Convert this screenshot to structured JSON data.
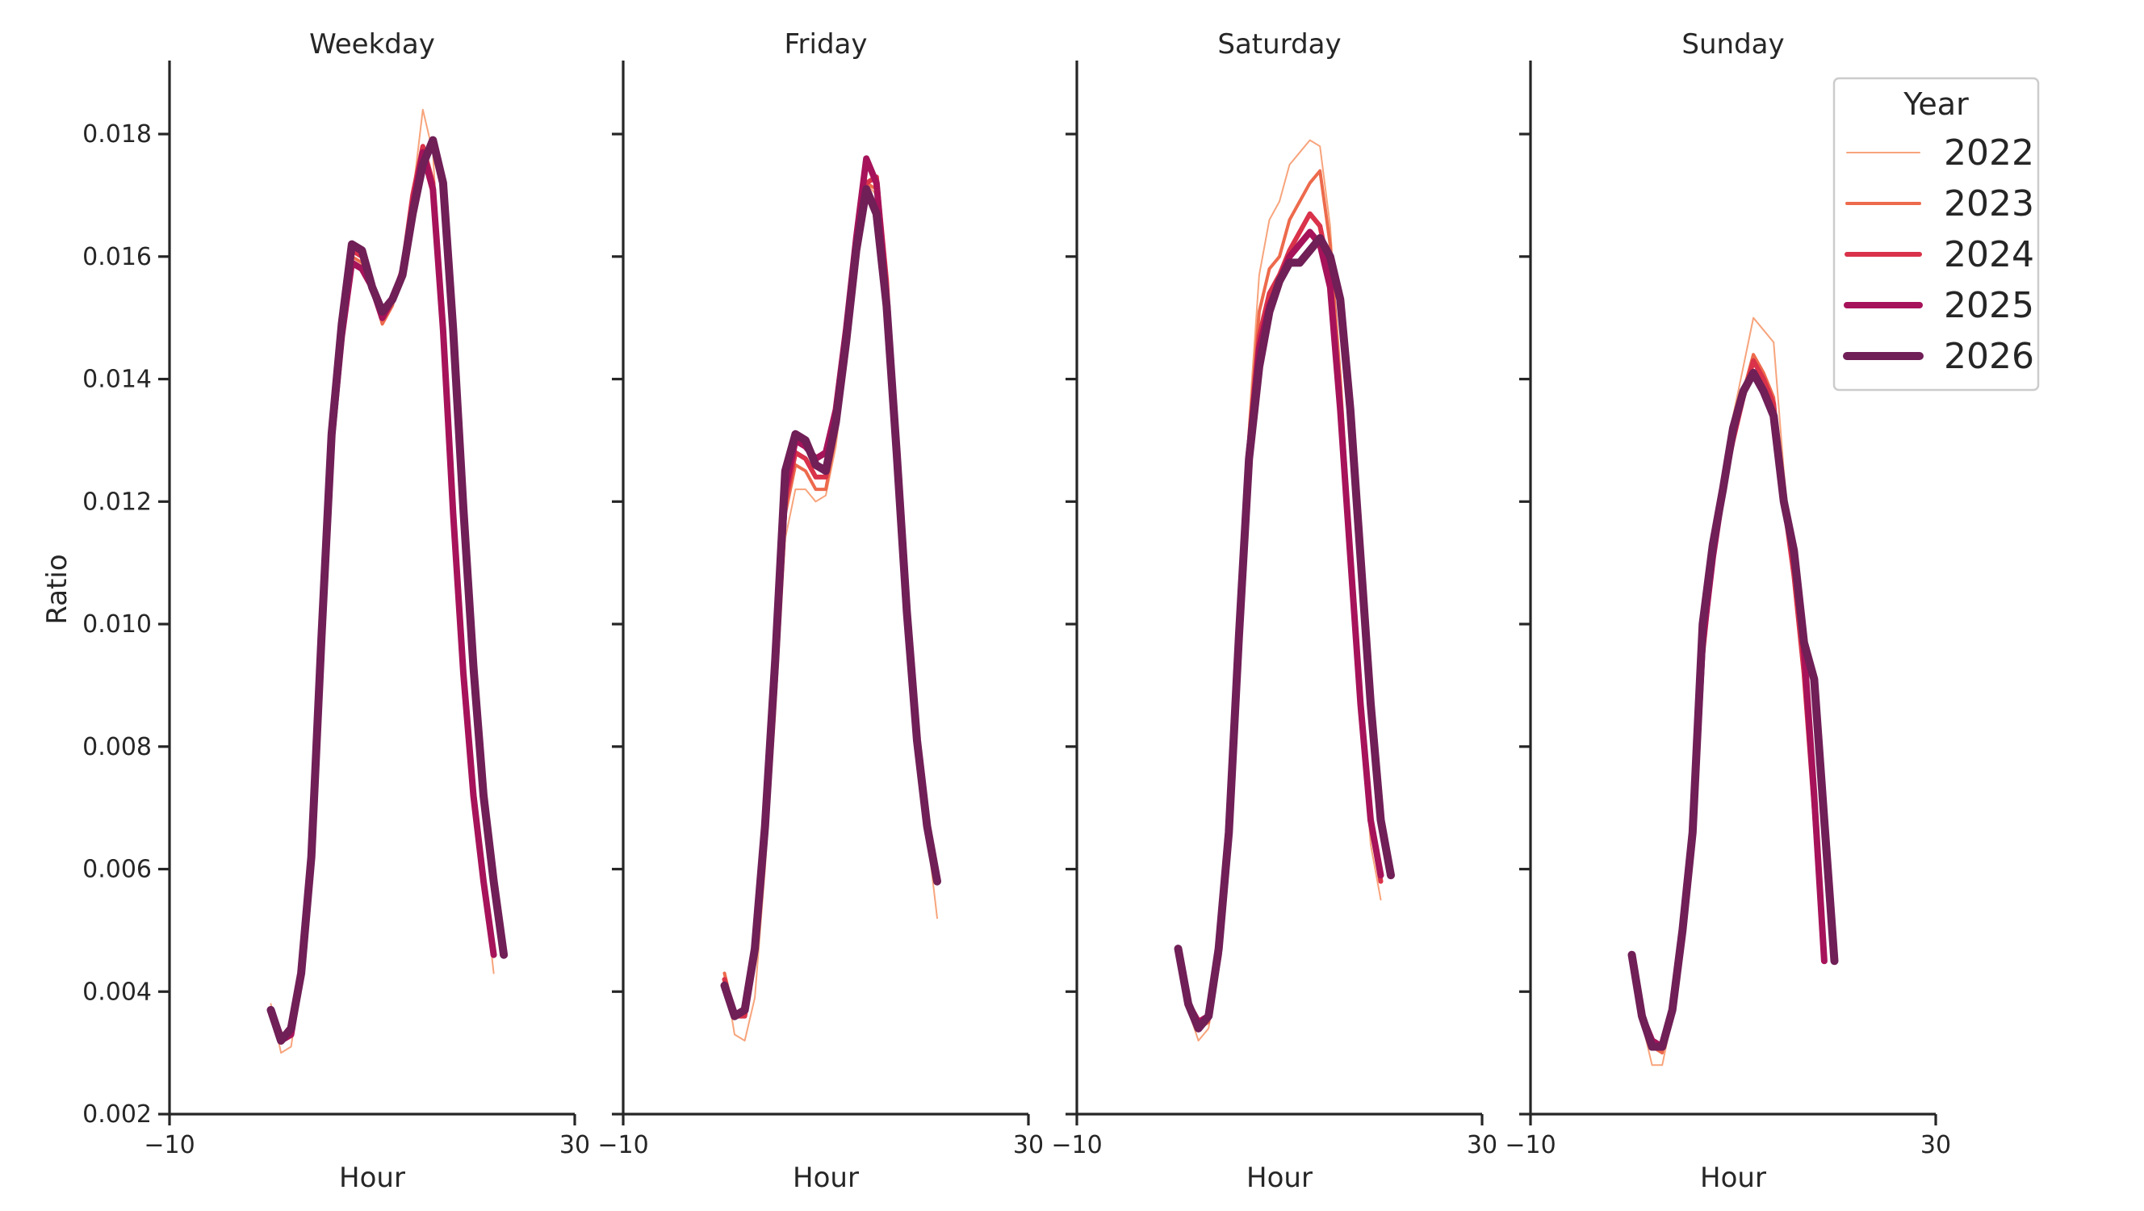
{
  "chart_data": {
    "type": "line",
    "ylabel": "Ratio",
    "xlabel": "Hour",
    "xlim": [
      -10,
      30
    ],
    "ylim": [
      0.002,
      0.0192
    ],
    "xticks": [
      -10,
      30
    ],
    "xtick_labels": [
      "−10",
      "30"
    ],
    "yticks": [
      0.002,
      0.004,
      0.006,
      0.008,
      0.01,
      0.012,
      0.014,
      0.016,
      0.018
    ],
    "ytick_labels": [
      "0.002",
      "0.004",
      "0.006",
      "0.008",
      "0.010",
      "0.012",
      "0.014",
      "0.016",
      "0.018"
    ],
    "grid": false,
    "legend": {
      "title": "Year",
      "position": "top-right",
      "entries": [
        {
          "label": "2022",
          "color": "#f7a47c",
          "width": 2
        },
        {
          "label": "2023",
          "color": "#ed6a4c",
          "width": 4
        },
        {
          "label": "2024",
          "color": "#d9324a",
          "width": 6
        },
        {
          "label": "2025",
          "color": "#a6135a",
          "width": 8
        },
        {
          "label": "2026",
          "color": "#701f57",
          "width": 10
        }
      ]
    },
    "hours": [
      0,
      1,
      2,
      3,
      4,
      5,
      6,
      7,
      8,
      9,
      10,
      11,
      12,
      13,
      14,
      15,
      16,
      17,
      18,
      19,
      20,
      21,
      22,
      23
    ],
    "panels": [
      {
        "title": "Weekday",
        "series": [
          {
            "name": "2022",
            "values": [
              0.0038,
              0.003,
              0.0031,
              0.0042,
              0.0062,
              0.0096,
              0.013,
              0.0147,
              0.016,
              0.0159,
              0.0155,
              0.015,
              0.0153,
              0.0158,
              0.017,
              0.0184,
              0.0177,
              0.0148,
              0.0118,
              0.0092,
              0.0073,
              0.0058,
              0.0043,
              null
            ]
          },
          {
            "name": "2023",
            "values": [
              0.0037,
              0.0032,
              0.0033,
              0.0043,
              0.0063,
              0.0097,
              0.013,
              0.0148,
              0.016,
              0.0159,
              0.0155,
              0.0149,
              0.0152,
              0.0158,
              0.017,
              0.0176,
              0.017,
              0.0148,
              0.0118,
              0.0093,
              0.0073,
              0.0058,
              0.0046,
              null
            ]
          },
          {
            "name": "2024",
            "values": [
              0.0037,
              0.0033,
              0.0033,
              0.0043,
              0.0062,
              0.0097,
              0.0131,
              0.0148,
              0.0161,
              0.016,
              0.0155,
              0.0151,
              0.0153,
              0.0158,
              0.017,
              0.0178,
              0.0172,
              0.0148,
              0.0118,
              0.0093,
              0.0073,
              0.0058,
              0.0046,
              null
            ]
          },
          {
            "name": "2025",
            "values": [
              0.0037,
              0.0032,
              0.0033,
              0.0043,
              0.0062,
              0.0097,
              0.013,
              0.0147,
              0.0159,
              0.0158,
              0.0155,
              0.015,
              0.0153,
              0.0157,
              0.0168,
              0.0177,
              0.0171,
              0.0148,
              0.0118,
              0.0092,
              0.0072,
              0.0058,
              0.0046,
              null
            ]
          },
          {
            "name": "2026",
            "values": [
              0.0037,
              0.0032,
              0.0034,
              0.0043,
              0.0062,
              0.0098,
              0.0131,
              0.0149,
              0.0162,
              0.0161,
              0.0155,
              0.0151,
              0.0153,
              0.0157,
              0.0167,
              0.0175,
              0.0179,
              0.0172,
              0.0148,
              0.0119,
              0.0093,
              0.0072,
              0.0058,
              0.0046
            ]
          }
        ]
      },
      {
        "title": "Friday",
        "series": [
          {
            "name": "2022",
            "values": [
              0.0043,
              0.0033,
              0.0032,
              0.0039,
              0.006,
              0.0085,
              0.0114,
              0.0122,
              0.0122,
              0.012,
              0.0121,
              0.0129,
              0.0143,
              0.016,
              0.0172,
              0.017,
              0.0155,
              0.0128,
              0.0102,
              0.0079,
              0.0066,
              0.0052,
              null,
              null
            ]
          },
          {
            "name": "2023",
            "values": [
              0.0043,
              0.0036,
              0.0036,
              0.0045,
              0.0063,
              0.0089,
              0.0118,
              0.0126,
              0.0125,
              0.0122,
              0.0122,
              0.0131,
              0.0145,
              0.0161,
              0.0172,
              0.0171,
              0.0155,
              0.0128,
              0.0102,
              0.0081,
              0.0067,
              0.0058,
              null,
              null
            ]
          },
          {
            "name": "2024",
            "values": [
              0.0042,
              0.0036,
              0.0036,
              0.0046,
              0.0065,
              0.009,
              0.012,
              0.0128,
              0.0127,
              0.0124,
              0.0124,
              0.0132,
              0.0145,
              0.016,
              0.0172,
              0.0173,
              0.0156,
              0.0129,
              0.0103,
              0.0081,
              0.0067,
              0.0058,
              null,
              null
            ]
          },
          {
            "name": "2025",
            "values": [
              0.0041,
              0.0036,
              0.0037,
              0.0047,
              0.0067,
              0.0093,
              0.0122,
              0.013,
              0.0129,
              0.0127,
              0.0128,
              0.0135,
              0.0148,
              0.0163,
              0.0176,
              0.0172,
              0.0153,
              0.0128,
              0.0102,
              0.0081,
              0.0067,
              0.0058,
              null,
              null
            ]
          },
          {
            "name": "2026",
            "values": [
              0.0041,
              0.0036,
              0.0037,
              0.0047,
              0.0067,
              0.0094,
              0.0125,
              0.0131,
              0.013,
              0.0126,
              0.0125,
              0.0133,
              0.0146,
              0.0161,
              0.0171,
              0.0167,
              0.0152,
              0.0128,
              0.0102,
              0.0081,
              0.0067,
              0.0058,
              null,
              null
            ]
          }
        ]
      },
      {
        "title": "Saturday",
        "series": [
          {
            "name": "2022",
            "values": [
              0.0047,
              0.0037,
              0.0032,
              0.0034,
              0.0045,
              0.0066,
              0.0098,
              0.0133,
              0.0157,
              0.0166,
              0.0169,
              0.0175,
              0.0177,
              0.0179,
              0.0178,
              0.0165,
              0.014,
              0.0113,
              0.0086,
              0.0064,
              0.0055,
              null,
              null,
              null
            ]
          },
          {
            "name": "2023",
            "values": [
              0.0047,
              0.0038,
              0.0034,
              0.0035,
              0.0046,
              0.0066,
              0.0098,
              0.0131,
              0.0151,
              0.0158,
              0.016,
              0.0166,
              0.0169,
              0.0172,
              0.0174,
              0.0162,
              0.014,
              0.0113,
              0.0086,
              0.0067,
              0.0058,
              null,
              null,
              null
            ]
          },
          {
            "name": "2024",
            "values": [
              0.0047,
              0.0038,
              0.0034,
              0.0036,
              0.0046,
              0.0066,
              0.0098,
              0.0129,
              0.0147,
              0.0154,
              0.0157,
              0.0161,
              0.0164,
              0.0167,
              0.0165,
              0.0157,
              0.0136,
              0.0112,
              0.0087,
              0.0068,
              0.0058,
              null,
              null,
              null
            ]
          },
          {
            "name": "2025",
            "values": [
              0.0047,
              0.0038,
              0.0035,
              0.0036,
              0.0046,
              0.0066,
              0.0098,
              0.0128,
              0.0145,
              0.0152,
              0.0156,
              0.016,
              0.0162,
              0.0164,
              0.0162,
              0.0155,
              0.0135,
              0.0111,
              0.0087,
              0.0068,
              0.0059,
              null,
              null,
              null
            ]
          },
          {
            "name": "2026",
            "values": [
              0.0047,
              0.0038,
              0.0034,
              0.0036,
              0.0047,
              0.0066,
              0.0098,
              0.0127,
              0.0142,
              0.0151,
              0.0156,
              0.0159,
              0.0159,
              0.0161,
              0.0163,
              0.016,
              0.0153,
              0.0135,
              0.0111,
              0.0087,
              0.0068,
              0.0059,
              null,
              null
            ]
          }
        ]
      },
      {
        "title": "Sunday",
        "series": [
          {
            "name": "2022",
            "values": [
              0.0046,
              0.0035,
              0.0028,
              0.0028,
              0.0036,
              0.0049,
              0.0066,
              0.0094,
              0.0112,
              0.0125,
              0.0134,
              0.0142,
              0.015,
              0.0148,
              0.0146,
              0.0125,
              0.0108,
              0.009,
              0.0068,
              0.0045,
              null,
              null,
              null,
              null
            ]
          },
          {
            "name": "2023",
            "values": [
              0.0046,
              0.0036,
              0.0031,
              0.003,
              0.0037,
              0.005,
              0.0066,
              0.0094,
              0.0112,
              0.0124,
              0.0132,
              0.0138,
              0.0144,
              0.0141,
              0.0137,
              0.012,
              0.0107,
              0.0091,
              0.0069,
              0.0045,
              null,
              null,
              null,
              null
            ]
          },
          {
            "name": "2024",
            "values": [
              0.0046,
              0.0036,
              0.0032,
              0.0031,
              0.0037,
              0.005,
              0.0066,
              0.0095,
              0.0111,
              0.0122,
              0.013,
              0.0137,
              0.0143,
              0.014,
              0.0136,
              0.012,
              0.0108,
              0.0092,
              0.007,
              0.0045,
              null,
              null,
              null,
              null
            ]
          },
          {
            "name": "2025",
            "values": [
              0.0046,
              0.0036,
              0.0032,
              0.0031,
              0.0037,
              0.005,
              0.0066,
              0.0097,
              0.0111,
              0.0122,
              0.0131,
              0.0138,
              0.0141,
              0.0138,
              0.0134,
              0.012,
              0.0111,
              0.0096,
              0.0072,
              0.0045,
              null,
              null,
              null,
              null
            ]
          },
          {
            "name": "2026",
            "values": [
              0.0046,
              0.0036,
              0.0031,
              0.0031,
              0.0037,
              0.005,
              0.0066,
              0.01,
              0.0113,
              0.0122,
              0.0132,
              0.0138,
              0.0141,
              0.0138,
              0.0134,
              0.012,
              0.0112,
              0.0097,
              0.0091,
              0.0068,
              0.0045,
              null,
              null,
              null
            ]
          }
        ]
      }
    ]
  }
}
